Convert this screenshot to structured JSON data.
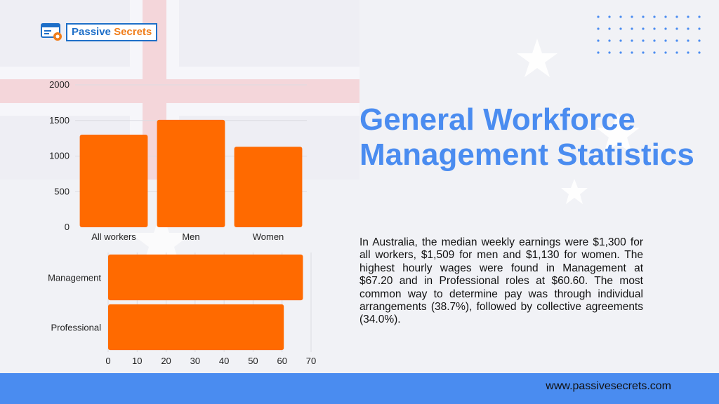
{
  "logo": {
    "brand_part1": "Passive",
    "brand_part2": "Secrets"
  },
  "headline": "General Workforce Management Statistics",
  "paragraph": "In Australia, the median weekly earnings were $1,300 for all workers, $1,509 for men and $1,130 for women. The highest hourly wages were found in Management at $67.20 and in Professional roles at $60.60. The most common way to determine pay was through individual arrangements (38.7%), followed by collective agreements (34.0%).",
  "footer": {
    "url": "www.passivesecrets.com"
  },
  "colors": {
    "bar": "#ff6a00",
    "accent": "#4a8cf0",
    "footer": "#4a8cf0"
  },
  "chart_data": [
    {
      "type": "bar",
      "orientation": "vertical",
      "categories": [
        "All workers",
        "Men",
        "Women"
      ],
      "values": [
        1300,
        1509,
        1130
      ],
      "ylim": [
        0,
        2000
      ],
      "yticks": [
        0,
        500,
        1000,
        1500,
        2000
      ],
      "grid": true
    },
    {
      "type": "bar",
      "orientation": "horizontal",
      "categories": [
        "Management",
        "Professional"
      ],
      "values": [
        67.2,
        60.6
      ],
      "xlim": [
        0,
        70
      ],
      "xticks": [
        0,
        10,
        20,
        30,
        40,
        50,
        60,
        70
      ],
      "grid": true
    }
  ]
}
